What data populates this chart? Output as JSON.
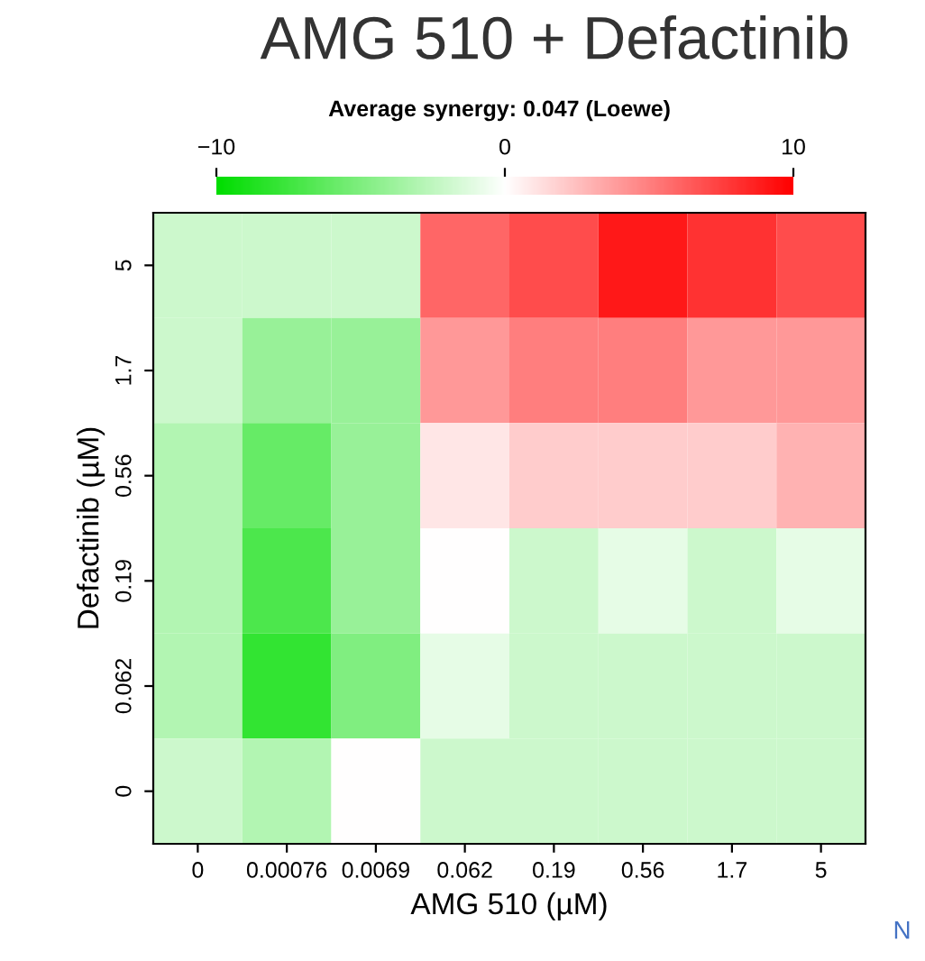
{
  "chart_data": {
    "type": "heatmap",
    "title": "AMG 510 + Defactinib",
    "subtitle": "Average synergy: 0.047 (Loewe)",
    "xlabel": "AMG 510 (µM)",
    "ylabel": "Defactinib (µM)",
    "categories": [
      "0",
      "0.00076",
      "0.0069",
      "0.062",
      "0.19",
      "0.56",
      "1.7",
      "5"
    ],
    "y_categories": [
      "5",
      "1.7",
      "0.56",
      "0.19",
      "0.062",
      "0"
    ],
    "cells": [
      [
        -2,
        -2,
        -2,
        6,
        7,
        9,
        8,
        7
      ],
      [
        -2,
        -4,
        -4,
        4,
        5,
        5,
        4,
        4
      ],
      [
        -3,
        -6,
        -4,
        1,
        2,
        2,
        2,
        3
      ],
      [
        -3,
        -7,
        -4,
        0,
        -2,
        -1,
        -2,
        -1
      ],
      [
        -3,
        -8,
        -5,
        -1,
        -2,
        -2,
        -2,
        -2
      ],
      [
        -2,
        -3,
        0,
        -2,
        -2,
        -2,
        -2,
        -2
      ]
    ],
    "clim": [
      -10,
      10
    ],
    "cticks": [
      {
        "value": -10,
        "label": "−10"
      },
      0,
      10
    ],
    "annotations": [
      "N"
    ]
  }
}
